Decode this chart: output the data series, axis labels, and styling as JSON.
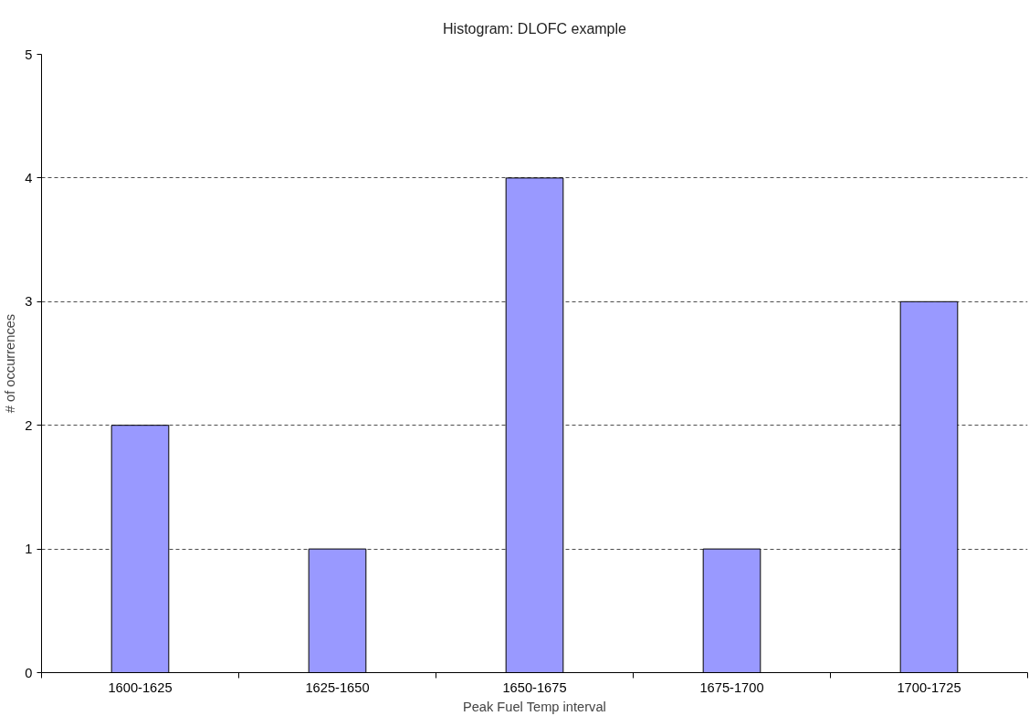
{
  "chart_data": {
    "type": "bar",
    "title": "Histogram: DLOFC example",
    "xlabel": "Peak Fuel Temp interval",
    "ylabel": "# of occurrences",
    "categories": [
      "1600-1625",
      "1625-1650",
      "1650-1675",
      "1675-1700",
      "1700-1725"
    ],
    "values": [
      2,
      1,
      4,
      1,
      3
    ],
    "color": "#9999ff",
    "ylim": [
      0,
      5
    ],
    "yticks": [
      0,
      1,
      2,
      3,
      4,
      5
    ],
    "grid": "y"
  }
}
